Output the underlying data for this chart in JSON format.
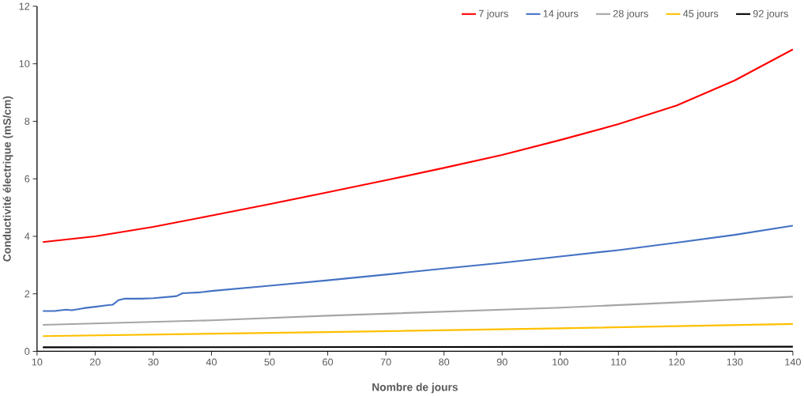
{
  "chart_data": {
    "type": "line",
    "xlabel": "Nombre de jours",
    "ylabel": "Conductivité électrique (mS/cm)",
    "xlim": [
      10,
      140
    ],
    "ylim": [
      0,
      12
    ],
    "xticks": [
      10,
      20,
      30,
      40,
      50,
      60,
      70,
      80,
      90,
      100,
      110,
      120,
      130,
      140
    ],
    "yticks": [
      0,
      2,
      4,
      6,
      8,
      10,
      12
    ],
    "legend": "top right",
    "grid": false,
    "marker": "none",
    "line_style": "solid",
    "series": [
      {
        "name": "7 jours",
        "color": "#ff0000",
        "x": [
          11,
          20,
          30,
          40,
          50,
          60,
          70,
          80,
          90,
          100,
          110,
          120,
          130,
          140
        ],
        "values": [
          3.8,
          4.0,
          4.33,
          4.72,
          5.12,
          5.53,
          5.95,
          6.38,
          6.83,
          7.35,
          7.9,
          8.55,
          9.42,
          10.5
        ]
      },
      {
        "name": "14 jours",
        "color": "#4472c4",
        "x": [
          11,
          13,
          15,
          16,
          18,
          20,
          22,
          23,
          24,
          25,
          28,
          30,
          33,
          34,
          35,
          38,
          40,
          50,
          60,
          70,
          80,
          90,
          100,
          110,
          120,
          130,
          140
        ],
        "values": [
          1.4,
          1.4,
          1.45,
          1.43,
          1.5,
          1.55,
          1.6,
          1.62,
          1.78,
          1.83,
          1.83,
          1.85,
          1.9,
          1.92,
          2.02,
          2.05,
          2.1,
          2.28,
          2.47,
          2.67,
          2.88,
          3.08,
          3.3,
          3.52,
          3.78,
          4.05,
          4.37
        ]
      },
      {
        "name": "28 jours",
        "color": "#a5a5a5",
        "x": [
          11,
          40,
          60,
          80,
          100,
          120,
          140
        ],
        "values": [
          0.92,
          1.08,
          1.24,
          1.38,
          1.52,
          1.7,
          1.9
        ]
      },
      {
        "name": "45 jours",
        "color": "#ffc000",
        "x": [
          11,
          60,
          100,
          140
        ],
        "values": [
          0.53,
          0.67,
          0.8,
          0.95
        ]
      },
      {
        "name": "92 jours",
        "color": "#000000",
        "x": [
          11,
          140
        ],
        "values": [
          0.14,
          0.16
        ]
      }
    ]
  }
}
